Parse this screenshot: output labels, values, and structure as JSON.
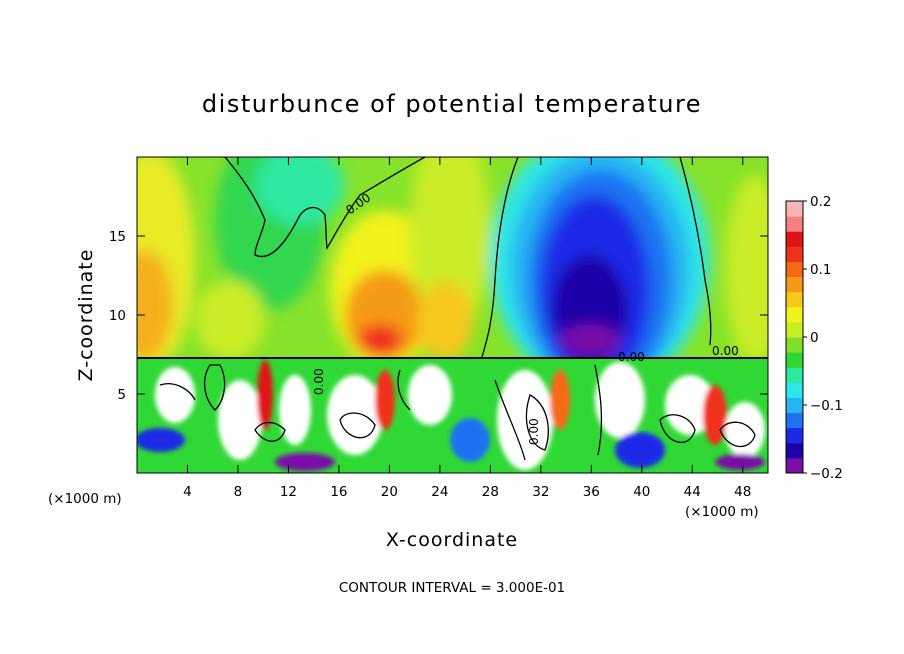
{
  "chart_data": {
    "type": "heatmap",
    "title": "disturbunce of potential temperature",
    "xlabel": "X-coordinate",
    "ylabel": "Z-coordinate",
    "x_unit": "(×1000 m)",
    "x_unit_right": "(×1000 m)",
    "xlim": [
      0,
      50
    ],
    "ylim": [
      0,
      20
    ],
    "xticks": [
      4,
      8,
      12,
      16,
      20,
      24,
      28,
      32,
      36,
      40,
      44,
      48
    ],
    "yticks": [
      5,
      10,
      15
    ],
    "footer": "CONTOUR INTERVAL = 3.000E-01",
    "contour_label": "0.00",
    "colorbar": {
      "min": -0.2,
      "max": 0.2,
      "tick_values": [
        0.2,
        0.1,
        0,
        -0.1,
        -0.2
      ],
      "tick_labels": [
        "0.2",
        "0.1",
        "0",
        "−0.1",
        "−0.2"
      ],
      "colors": [
        "#7a0fa8",
        "#1f00a8",
        "#1a2be8",
        "#1f73f2",
        "#25b5f2",
        "#2de6e6",
        "#2de8a0",
        "#30d835",
        "#7fe02a",
        "#c9ec25",
        "#f2f21c",
        "#f6c81c",
        "#f59a18",
        "#f56a16",
        "#f0321a",
        "#e01414",
        "#f58080",
        "#f8b4b4"
      ]
    },
    "upper_layer": {
      "z_range": [
        7.2,
        20
      ],
      "features": [
        {
          "x_center": 2,
          "value": 0.12,
          "z_range": [
            7.2,
            18
          ]
        },
        {
          "x_center": 11,
          "value": 0.05,
          "z_range": [
            7.2,
            14
          ]
        },
        {
          "x_center": 14,
          "value": -0.02,
          "z_range": [
            12,
            20
          ]
        },
        {
          "x_center": 21,
          "value": 0.13,
          "z_range": [
            7.2,
            14
          ]
        },
        {
          "x_center": 26,
          "value": 0.05,
          "z_range": [
            7.2,
            20
          ]
        },
        {
          "x_center": 37,
          "value": -0.16,
          "z_range": [
            7.2,
            19
          ]
        },
        {
          "x_center": 46,
          "value": 0.06,
          "z_range": [
            7.2,
            18
          ]
        }
      ]
    },
    "lower_layer": {
      "z_range": [
        0,
        7.2
      ],
      "description": "turbulent mixed layer with values from -0.2 to 0.2 and many closed contours"
    }
  }
}
